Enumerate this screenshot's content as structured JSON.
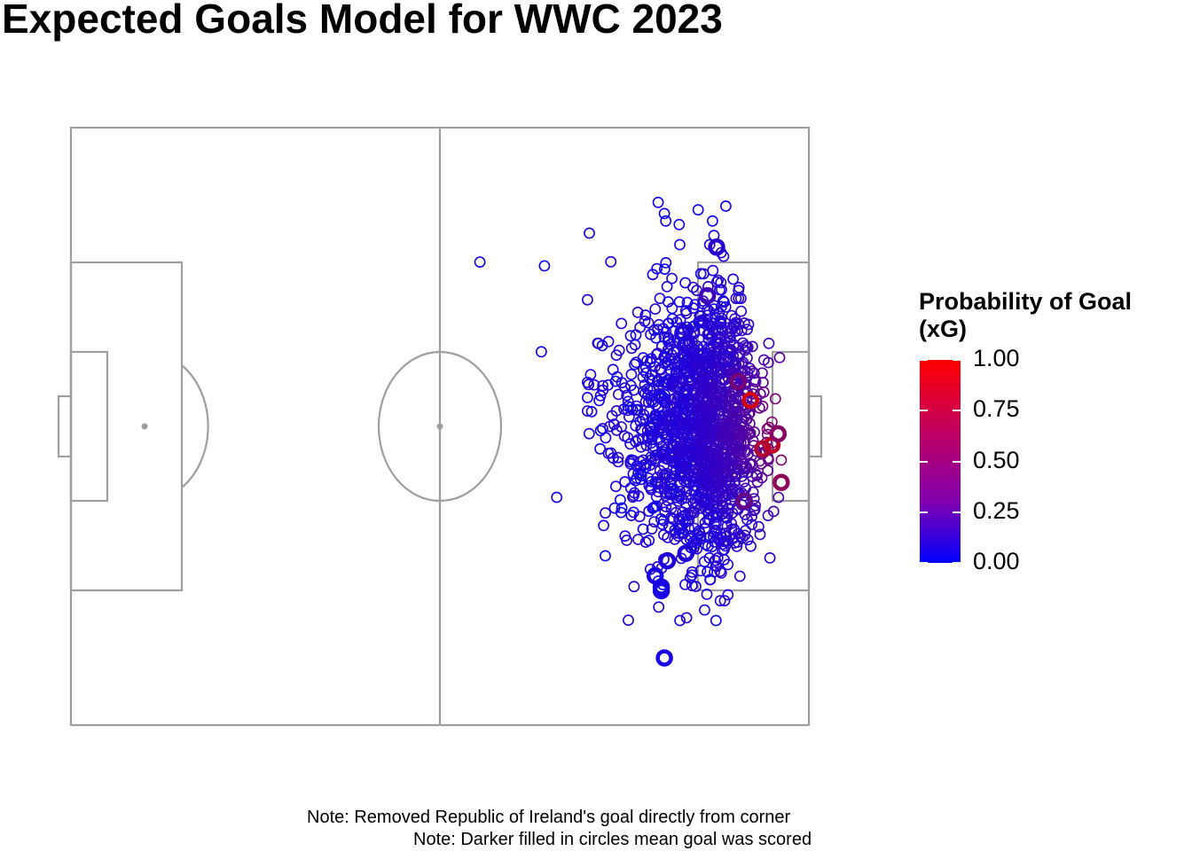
{
  "chart_data": {
    "type": "scatter",
    "title": "Expected Goals Model for WWC 2023",
    "subtitle": "",
    "xlabel": "",
    "ylabel": "",
    "background": "football pitch",
    "pitch": {
      "length": 120,
      "width": 80,
      "attacking_direction": "right"
    },
    "color_scale": {
      "title_lines": [
        "Probability of Goal",
        " (xG)"
      ],
      "low_color": "#0000ff",
      "high_color": "#ff0000",
      "range": [
        0,
        1
      ],
      "ticks": [
        "0.00",
        "0.25",
        "0.50",
        "0.75",
        "1.00"
      ]
    },
    "legend_position": "right",
    "grid": false,
    "encoding": "open circles = shots; thicker circles = goals; colour = xG",
    "goals": [
      {
        "x": 110.5,
        "y": 36.5,
        "xg": 0.72
      },
      {
        "x": 114.0,
        "y": 42.5,
        "xg": 0.62
      },
      {
        "x": 112.5,
        "y": 43.0,
        "xg": 0.55
      },
      {
        "x": 115.5,
        "y": 47.5,
        "xg": 0.38
      },
      {
        "x": 115.0,
        "y": 41.0,
        "xg": 0.35
      },
      {
        "x": 108.5,
        "y": 34.0,
        "xg": 0.28
      },
      {
        "x": 103.5,
        "y": 22.5,
        "xg": 0.1
      },
      {
        "x": 105.0,
        "y": 16.0,
        "xg": 0.05
      },
      {
        "x": 100.0,
        "y": 29.0,
        "xg": 0.04
      },
      {
        "x": 99.5,
        "y": 27.5,
        "xg": 0.03
      },
      {
        "x": 106.5,
        "y": 31.0,
        "xg": 0.05
      },
      {
        "x": 96.0,
        "y": 61.5,
        "xg": 0.02
      },
      {
        "x": 96.0,
        "y": 62.0,
        "xg": 0.02
      },
      {
        "x": 96.5,
        "y": 71.0,
        "xg": 0.02
      },
      {
        "x": 97.0,
        "y": 58.0,
        "xg": 0.03
      },
      {
        "x": 95.0,
        "y": 60.0,
        "xg": 0.02
      },
      {
        "x": 100.0,
        "y": 57.0,
        "xg": 0.03
      },
      {
        "x": 109.5,
        "y": 50.0,
        "xg": 0.22
      }
    ],
    "shots_summary": {
      "count": 1600,
      "x_range": [
        64,
        119.5
      ],
      "y_range": [
        7.5,
        72
      ],
      "densest_region": "in front of goal, x 102-118, y 24-56",
      "outliers": [
        {
          "x": 66.5,
          "y": 18.0,
          "xg": 0.01
        },
        {
          "x": 76.5,
          "y": 30.0,
          "xg": 0.01
        },
        {
          "x": 77.0,
          "y": 18.5,
          "xg": 0.01
        },
        {
          "x": 79.0,
          "y": 49.5,
          "xg": 0.01
        },
        {
          "x": 106.5,
          "y": 10.5,
          "xg": 0.01
        },
        {
          "x": 102.0,
          "y": 11.0,
          "xg": 0.01
        },
        {
          "x": 96.5,
          "y": 11.5,
          "xg": 0.01
        },
        {
          "x": 95.5,
          "y": 10.0,
          "xg": 0.01
        }
      ]
    }
  },
  "notes": [
    "Note: Removed Republic of Ireland's goal directly from corner",
    "Note: Darker filled in circles mean goal was scored"
  ]
}
